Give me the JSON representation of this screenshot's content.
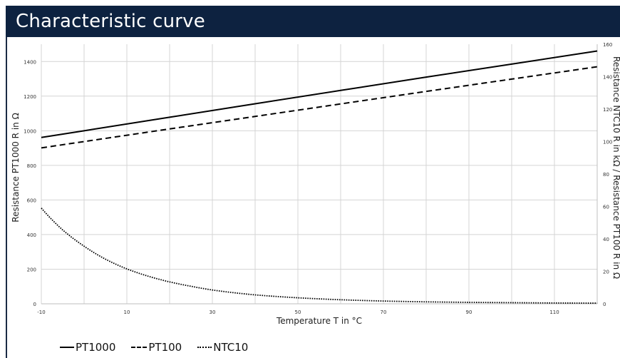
{
  "header": {
    "title": "Characteristic curve"
  },
  "chart_data": {
    "type": "line",
    "title": "Characteristic curve",
    "xlabel": "Temperature T in °C",
    "ylabel_left": "Resistance PT1000 R in Ω",
    "ylabel_right": "Resistance NTC10 R in kΩ / Resistance PT100 R in Ω",
    "xlim": [
      -10,
      120
    ],
    "x_ticks": [
      -10,
      10,
      30,
      50,
      70,
      90,
      110
    ],
    "ylim_left": [
      0,
      1500
    ],
    "y_ticks_left": [
      0,
      200,
      400,
      600,
      800,
      1000,
      1200,
      1400
    ],
    "ylim_right": [
      0,
      160
    ],
    "y_ticks_right": [
      0,
      20,
      40,
      60,
      80,
      100,
      120,
      140,
      160
    ],
    "grid": true,
    "legend_position": "bottom-left",
    "series": [
      {
        "name": "PT1000",
        "axis": "left",
        "style": "solid",
        "x": [
          -10,
          0,
          20,
          40,
          60,
          80,
          100,
          120
        ],
        "y": [
          961,
          1000,
          1078,
          1156,
          1233,
          1310,
          1385,
          1461
        ]
      },
      {
        "name": "PT100",
        "axis": "right",
        "style": "dashed",
        "x": [
          -10,
          0,
          20,
          40,
          60,
          80,
          100,
          120
        ],
        "y": [
          96.1,
          100.0,
          107.8,
          115.5,
          123.2,
          130.9,
          138.5,
          146.1
        ]
      },
      {
        "name": "NTC10",
        "axis": "right",
        "style": "dotted",
        "x": [
          -10,
          -5,
          0,
          5,
          10,
          15,
          20,
          25,
          30,
          40,
          50,
          60,
          70,
          80,
          90,
          100,
          110,
          120
        ],
        "y": [
          59.0,
          45.5,
          35.5,
          27.5,
          21.5,
          17.0,
          13.5,
          10.8,
          8.5,
          5.5,
          3.7,
          2.5,
          1.7,
          1.2,
          0.9,
          0.7,
          0.5,
          0.4
        ]
      }
    ]
  }
}
